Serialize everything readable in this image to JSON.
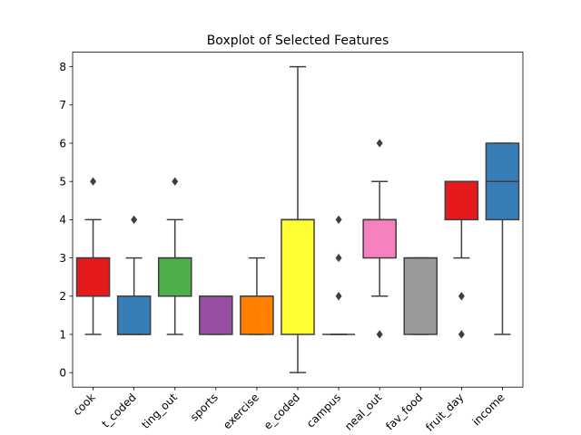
{
  "chart_data": {
    "type": "box",
    "title": "Boxplot of Selected Features",
    "xlabel": "",
    "ylabel": "",
    "ylim": [
      -0.38,
      8.38
    ],
    "yticks": [
      0,
      1,
      2,
      3,
      4,
      5,
      6,
      7,
      8
    ],
    "categories": [
      "cook",
      "t_coded",
      "ting_out",
      "sports",
      "exercise",
      "e_coded",
      "campus",
      "neal_out",
      "fav_food",
      "fruit_day",
      "income"
    ],
    "boxes": [
      {
        "q1": 2,
        "median": 3,
        "q3": 3,
        "whisker_low": 1,
        "whisker_high": 4,
        "outliers": [
          5
        ],
        "color": "#e41a1c"
      },
      {
        "q1": 1,
        "median": 1,
        "q3": 2,
        "whisker_low": 1,
        "whisker_high": 3,
        "outliers": [
          4
        ],
        "color": "#377eb8"
      },
      {
        "q1": 2,
        "median": 3,
        "q3": 3,
        "whisker_low": 1,
        "whisker_high": 4,
        "outliers": [
          5
        ],
        "color": "#4daf4a"
      },
      {
        "q1": 1,
        "median": 2,
        "q3": 2,
        "whisker_low": 1,
        "whisker_high": 2,
        "outliers": [],
        "color": "#984ea3"
      },
      {
        "q1": 1,
        "median": 2,
        "q3": 2,
        "whisker_low": 1,
        "whisker_high": 3,
        "outliers": [],
        "color": "#ff7f00"
      },
      {
        "q1": 1,
        "median": 4,
        "q3": 4,
        "whisker_low": 0,
        "whisker_high": 8,
        "outliers": [],
        "color": "#ffff33"
      },
      {
        "q1": 1,
        "median": 1,
        "q3": 1,
        "whisker_low": 1,
        "whisker_high": 1,
        "outliers": [
          2,
          3,
          4
        ],
        "color": "#a65628"
      },
      {
        "q1": 3,
        "median": 4,
        "q3": 4,
        "whisker_low": 2,
        "whisker_high": 5,
        "outliers": [
          1,
          6
        ],
        "color": "#f781bf"
      },
      {
        "q1": 1,
        "median": 3,
        "q3": 3,
        "whisker_low": 1,
        "whisker_high": 3,
        "outliers": [],
        "color": "#999999"
      },
      {
        "q1": 4,
        "median": 5,
        "q3": 5,
        "whisker_low": 3,
        "whisker_high": 5,
        "outliers": [
          1,
          2
        ],
        "color": "#e41a1c"
      },
      {
        "q1": 4,
        "median": 5,
        "q3": 6,
        "whisker_low": 1,
        "whisker_high": 6,
        "outliers": [],
        "color": "#377eb8"
      }
    ],
    "line_color": "#3f3f3f",
    "grid": false,
    "legend": "none"
  }
}
